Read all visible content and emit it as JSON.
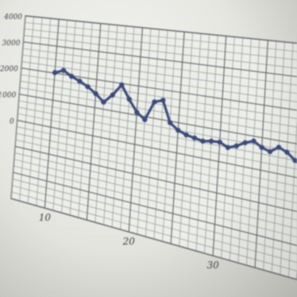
{
  "chart_data": {
    "type": "line",
    "title": "",
    "xlabel": "",
    "ylabel": "",
    "x_ticks": [
      "10",
      "20",
      "30"
    ],
    "y_ticks": [
      "4000",
      "3000",
      "2000",
      "1000",
      "0"
    ],
    "grid": true,
    "xlim": [
      6,
      40
    ],
    "ylim": [
      -3000,
      4000
    ],
    "series": [
      {
        "color": "#3b4b7a",
        "marker": "dot",
        "x": [
          10,
          11,
          12,
          13,
          14,
          15,
          16,
          17,
          18,
          19,
          20,
          21,
          22,
          23,
          24,
          25,
          26,
          27,
          28,
          29,
          30,
          31,
          32,
          33,
          34,
          35,
          36,
          37,
          38,
          39,
          40
        ],
        "y": [
          2020,
          2150,
          1980,
          1850,
          1700,
          1500,
          1250,
          1550,
          1950,
          1500,
          1100,
          900,
          1550,
          1650,
          950,
          750,
          650,
          600,
          550,
          600,
          620,
          500,
          600,
          750,
          850,
          700,
          620,
          800,
          700,
          500,
          350
        ]
      }
    ]
  }
}
